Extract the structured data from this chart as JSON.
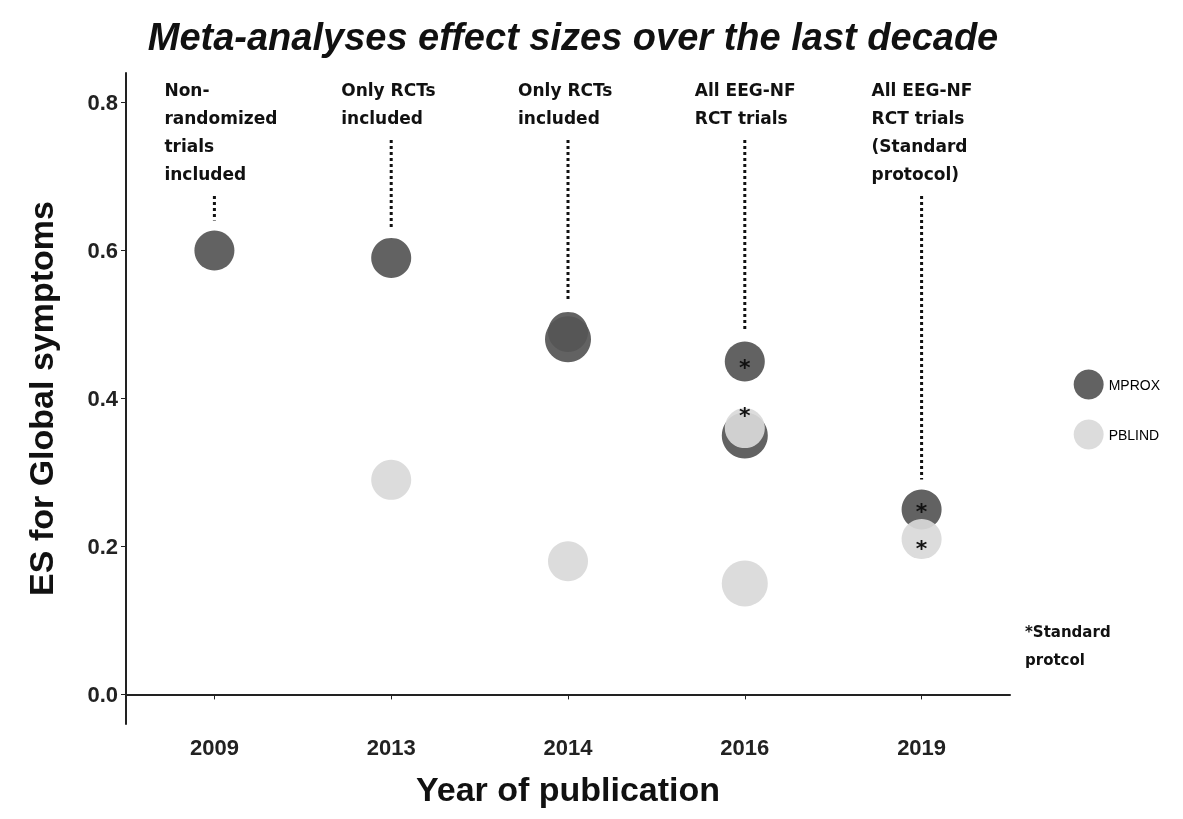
{
  "chart_data": {
    "type": "scatter",
    "title": "Meta-analyses effect sizes over the last decade",
    "xlabel": "Year of publication",
    "ylabel": "ES for Global symptoms",
    "categories": [
      "2009",
      "2013",
      "2014",
      "2016",
      "2019"
    ],
    "series": [
      {
        "name": "MPROX",
        "color": "#555555",
        "values": [
          0.6,
          0.59,
          0.49,
          0.45,
          0.25
        ]
      },
      {
        "color": "#555555",
        "values": [
          null,
          null,
          0.48,
          0.35,
          null
        ]
      },
      {
        "name": "PBLIND",
        "color": "#d9d9d9",
        "values": [
          null,
          0.29,
          0.18,
          0.36,
          0.21
        ]
      },
      {
        "color": "#d9d9d9",
        "values": [
          null,
          null,
          null,
          0.15,
          null
        ]
      }
    ],
    "ylim": [
      -0.04,
      0.84
    ],
    "yticks": [
      {
        "value": 0,
        "label": "0.0"
      },
      {
        "value": 0.2,
        "label": "0.2"
      },
      {
        "value": 0.4,
        "label": "0.4"
      },
      {
        "value": 0.6,
        "label": "0.6"
      },
      {
        "value": 0.8,
        "label": "0.8"
      }
    ],
    "grid": false,
    "legend": "right",
    "marker": "circle",
    "annotations": [
      "Non-\nrandomized\ntrials\nincluded",
      "Only RCTs\nincluded",
      "Only RCTs\nincluded",
      "All EEG-NF\nRCT trials",
      "All EEG-NF\nRCT trials\n(Standard\nprotocol)",
      {
        "text": "*",
        "x": "2016",
        "y": 0.45
      },
      {
        "text": "*",
        "x": "2016",
        "y": 0.385
      },
      {
        "text": "*",
        "x": "2019",
        "y": 0.255
      },
      {
        "text": "*",
        "x": "2019",
        "y": 0.205
      },
      "*Standard protcol"
    ]
  }
}
